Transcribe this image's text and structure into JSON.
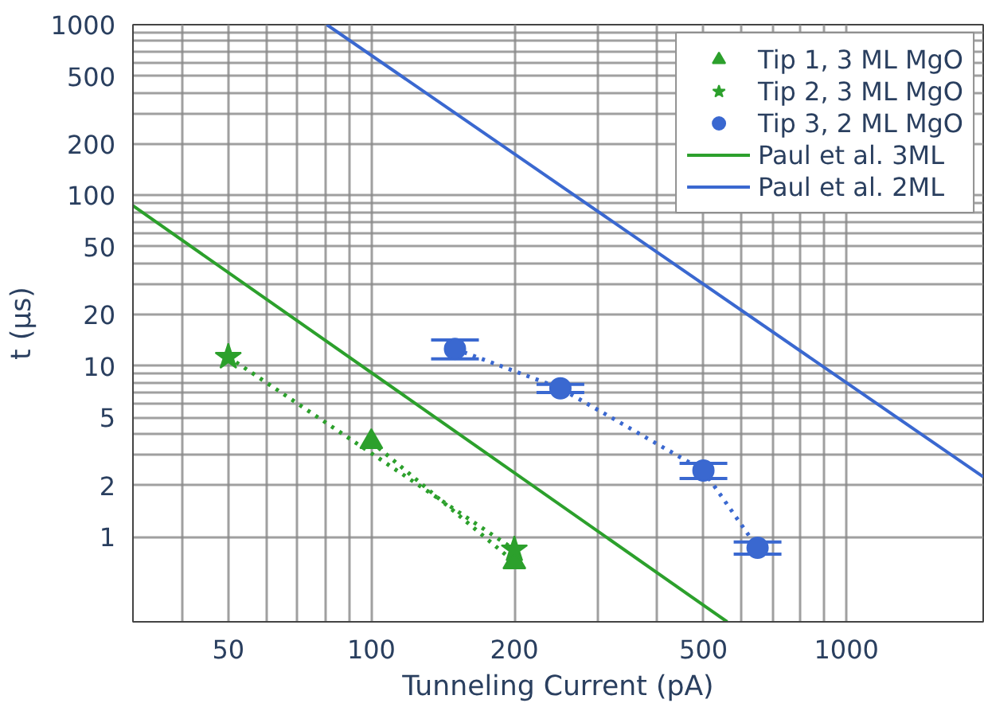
{
  "chart_data": {
    "type": "line",
    "xlabel": "Tunneling Current (pA)",
    "ylabel": "t (μs)",
    "log": "xy",
    "grid": true,
    "legend": "top right",
    "xlim": [
      31.5,
      1940
    ],
    "ylim": [
      0.317,
      1000
    ],
    "xticks": [
      {
        "value": 40,
        "label": null
      },
      50,
      {
        "value": 60,
        "label": null
      },
      {
        "value": 70,
        "label": null
      },
      {
        "value": 80,
        "label": null
      },
      {
        "value": 90,
        "label": null
      },
      100,
      200,
      {
        "value": 300,
        "label": null
      },
      {
        "value": 400,
        "label": null
      },
      500,
      {
        "value": 600,
        "label": null
      },
      {
        "value": 700,
        "label": null
      },
      {
        "value": 800,
        "label": null
      },
      {
        "value": 900,
        "label": null
      },
      1000
    ],
    "yticks": [
      1,
      2,
      {
        "value": 3,
        "label": null
      },
      {
        "value": 4,
        "label": null
      },
      5,
      {
        "value": 6,
        "label": null
      },
      {
        "value": 7,
        "label": null
      },
      {
        "value": 8,
        "label": null
      },
      {
        "value": 9,
        "label": null
      },
      10,
      20,
      {
        "value": 30,
        "label": null
      },
      {
        "value": 40,
        "label": null
      },
      50,
      {
        "value": 60,
        "label": null
      },
      {
        "value": 70,
        "label": null
      },
      {
        "value": 80,
        "label": null
      },
      {
        "value": 90,
        "label": null
      },
      100,
      200,
      {
        "value": 300,
        "label": null
      },
      {
        "value": 400,
        "label": null
      },
      500,
      {
        "value": 600,
        "label": null
      },
      {
        "value": 700,
        "label": null
      },
      {
        "value": 800,
        "label": null
      },
      {
        "value": 900,
        "label": null
      },
      1000
    ],
    "series": [
      {
        "name": "Tip 1, 3 ML MgO",
        "color": "#2ca02c",
        "marker": "triangle",
        "line_style": "dotted",
        "x": [
          100,
          200
        ],
        "values": [
          3.6,
          0.71
        ]
      },
      {
        "name": "Tip 2, 3 ML MgO",
        "color": "#2ca02c",
        "marker": "star",
        "line_style": "dotted",
        "x": [
          50,
          200
        ],
        "values": [
          11.3,
          0.84
        ]
      },
      {
        "name": "Tip 3, 2 ML MgO",
        "color": "#3a68d0",
        "marker": "circle",
        "line_style": "dotted",
        "x": [
          150,
          250,
          500,
          650
        ],
        "values": [
          12.6,
          7.4,
          2.44,
          0.86
        ],
        "errors": [
          1.6,
          0.4,
          0.25,
          0.07
        ]
      },
      {
        "name": "Paul et al. 3ML",
        "color": "#2ca02c",
        "marker": "none",
        "line_style": "solid",
        "x": [
          31.5,
          561
        ],
        "values": [
          86.9,
          0.317
        ]
      },
      {
        "name": "Paul et al. 2ML",
        "color": "#3a68d0",
        "marker": "none",
        "line_style": "solid",
        "x": [
          80.6,
          1940
        ],
        "values": [
          1000,
          2.24
        ]
      }
    ]
  }
}
